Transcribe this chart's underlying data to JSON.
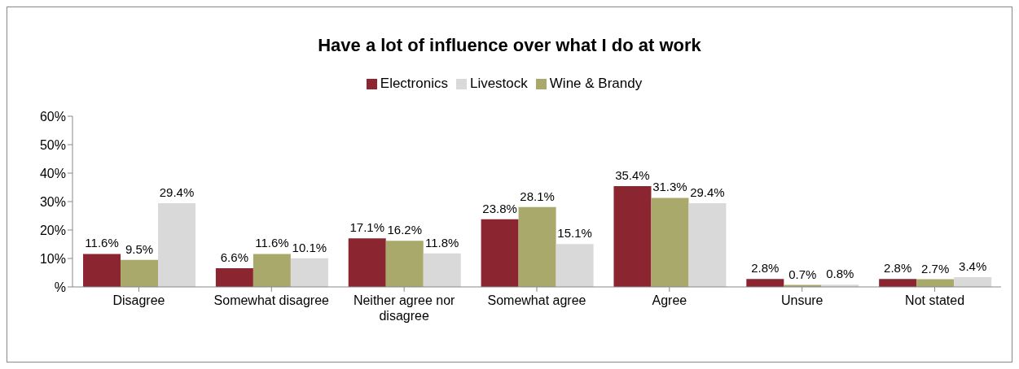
{
  "chart_data": {
    "type": "bar",
    "title": "Have a lot of influence over what I do at work",
    "categories": [
      "Disagree",
      "Somewhat disagree",
      "Neither agree nor disagree",
      "Somewhat agree",
      "Agree",
      "Unsure",
      "Not stated"
    ],
    "series": [
      {
        "name": "Electronics",
        "color": "#8b2530",
        "values": [
          11.6,
          6.6,
          17.1,
          23.8,
          35.4,
          2.8,
          2.8
        ],
        "value_labels": [
          "11.6%",
          "6.6%",
          "17.1%",
          "23.8%",
          "35.4%",
          "2.8%",
          "2.8%"
        ]
      },
      {
        "name": "Wine & Brandy",
        "color": "#a9a96b",
        "values": [
          9.5,
          11.6,
          16.2,
          28.1,
          31.3,
          0.7,
          2.7
        ],
        "value_labels": [
          "9.5%",
          "11.6%",
          "16.2%",
          "28.1%",
          "31.3%",
          "0.7%",
          "2.7%"
        ]
      },
      {
        "name": "Livestock",
        "color": "#d9d9d9",
        "values": [
          29.4,
          10.1,
          11.8,
          15.1,
          29.4,
          0.8,
          3.4
        ],
        "value_labels": [
          "29.4%",
          "10.1%",
          "11.8%",
          "15.1%",
          "29.4%",
          "0.8%",
          "3.4%"
        ]
      }
    ],
    "ylim": [
      0,
      60
    ],
    "yticks": [
      {
        "value": 0,
        "label": "%"
      },
      {
        "value": 10,
        "label": "10%"
      },
      {
        "value": 20,
        "label": "20%"
      },
      {
        "value": 30,
        "label": "30%"
      },
      {
        "value": 40,
        "label": "40%"
      },
      {
        "value": 50,
        "label": "50%"
      },
      {
        "value": 60,
        "label": "60%"
      }
    ],
    "grid": false,
    "legend": "top"
  }
}
